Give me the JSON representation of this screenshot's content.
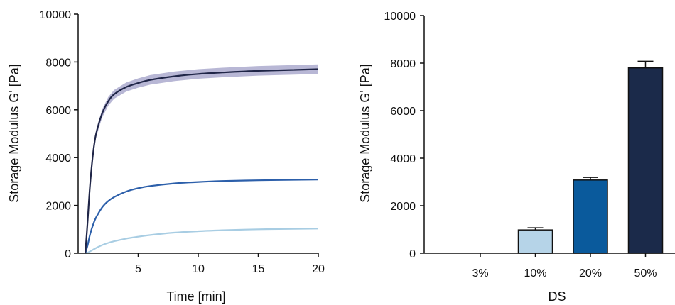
{
  "chart_data": [
    {
      "type": "line",
      "title": "",
      "xlabel": "Time [min]",
      "ylabel": "Storage Modulus G' [Pa]",
      "xlim": [
        0,
        20
      ],
      "ylim": [
        0,
        10000
      ],
      "xticks": [
        5,
        10,
        15,
        20
      ],
      "xtick_labels": [
        "5",
        "10",
        "15",
        "20"
      ],
      "yticks": [
        0,
        2000,
        4000,
        6000,
        8000,
        10000
      ],
      "ytick_labels": [
        "0",
        "2000",
        "4000",
        "6000",
        "8000",
        "10000"
      ],
      "grid": false,
      "x": [
        0.6,
        0.8,
        1,
        1.25,
        1.5,
        2,
        2.5,
        3,
        4,
        5,
        6,
        8,
        10,
        12,
        15,
        18,
        20
      ],
      "series": [
        {
          "color": "#1f2547",
          "band_color": "#9a98c3",
          "values": [
            0,
            1400,
            2900,
            4200,
            5000,
            5850,
            6350,
            6650,
            6950,
            7120,
            7250,
            7400,
            7500,
            7560,
            7630,
            7670,
            7700
          ],
          "error": [
            0,
            60,
            100,
            130,
            150,
            170,
            180,
            185,
            190,
            195,
            200,
            200,
            200,
            200,
            200,
            200,
            200
          ]
        },
        {
          "color": "#2c5faa",
          "values": [
            0,
            350,
            800,
            1200,
            1500,
            1920,
            2180,
            2350,
            2580,
            2720,
            2810,
            2920,
            2980,
            3020,
            3050,
            3070,
            3080
          ]
        },
        {
          "color": "#a8cde3",
          "values": [
            0,
            20,
            80,
            150,
            220,
            340,
            430,
            500,
            610,
            690,
            760,
            860,
            920,
            960,
            1000,
            1020,
            1030
          ]
        }
      ]
    },
    {
      "type": "bar",
      "title": "",
      "xlabel": "DS",
      "ylabel": "Storage Modulus G' [Pa]",
      "ylim": [
        0,
        10000
      ],
      "yticks": [
        0,
        2000,
        4000,
        6000,
        8000,
        10000
      ],
      "ytick_labels": [
        "0",
        "2000",
        "4000",
        "6000",
        "8000",
        "10000"
      ],
      "grid": false,
      "categories": [
        "3%",
        "10%",
        "20%",
        "50%"
      ],
      "values": [
        0,
        980,
        3080,
        7800
      ],
      "errors": [
        0,
        90,
        110,
        280
      ],
      "colors": [
        "#cfe3f0",
        "#b6d4e8",
        "#0a5a9c",
        "#1b2a4a"
      ]
    }
  ]
}
